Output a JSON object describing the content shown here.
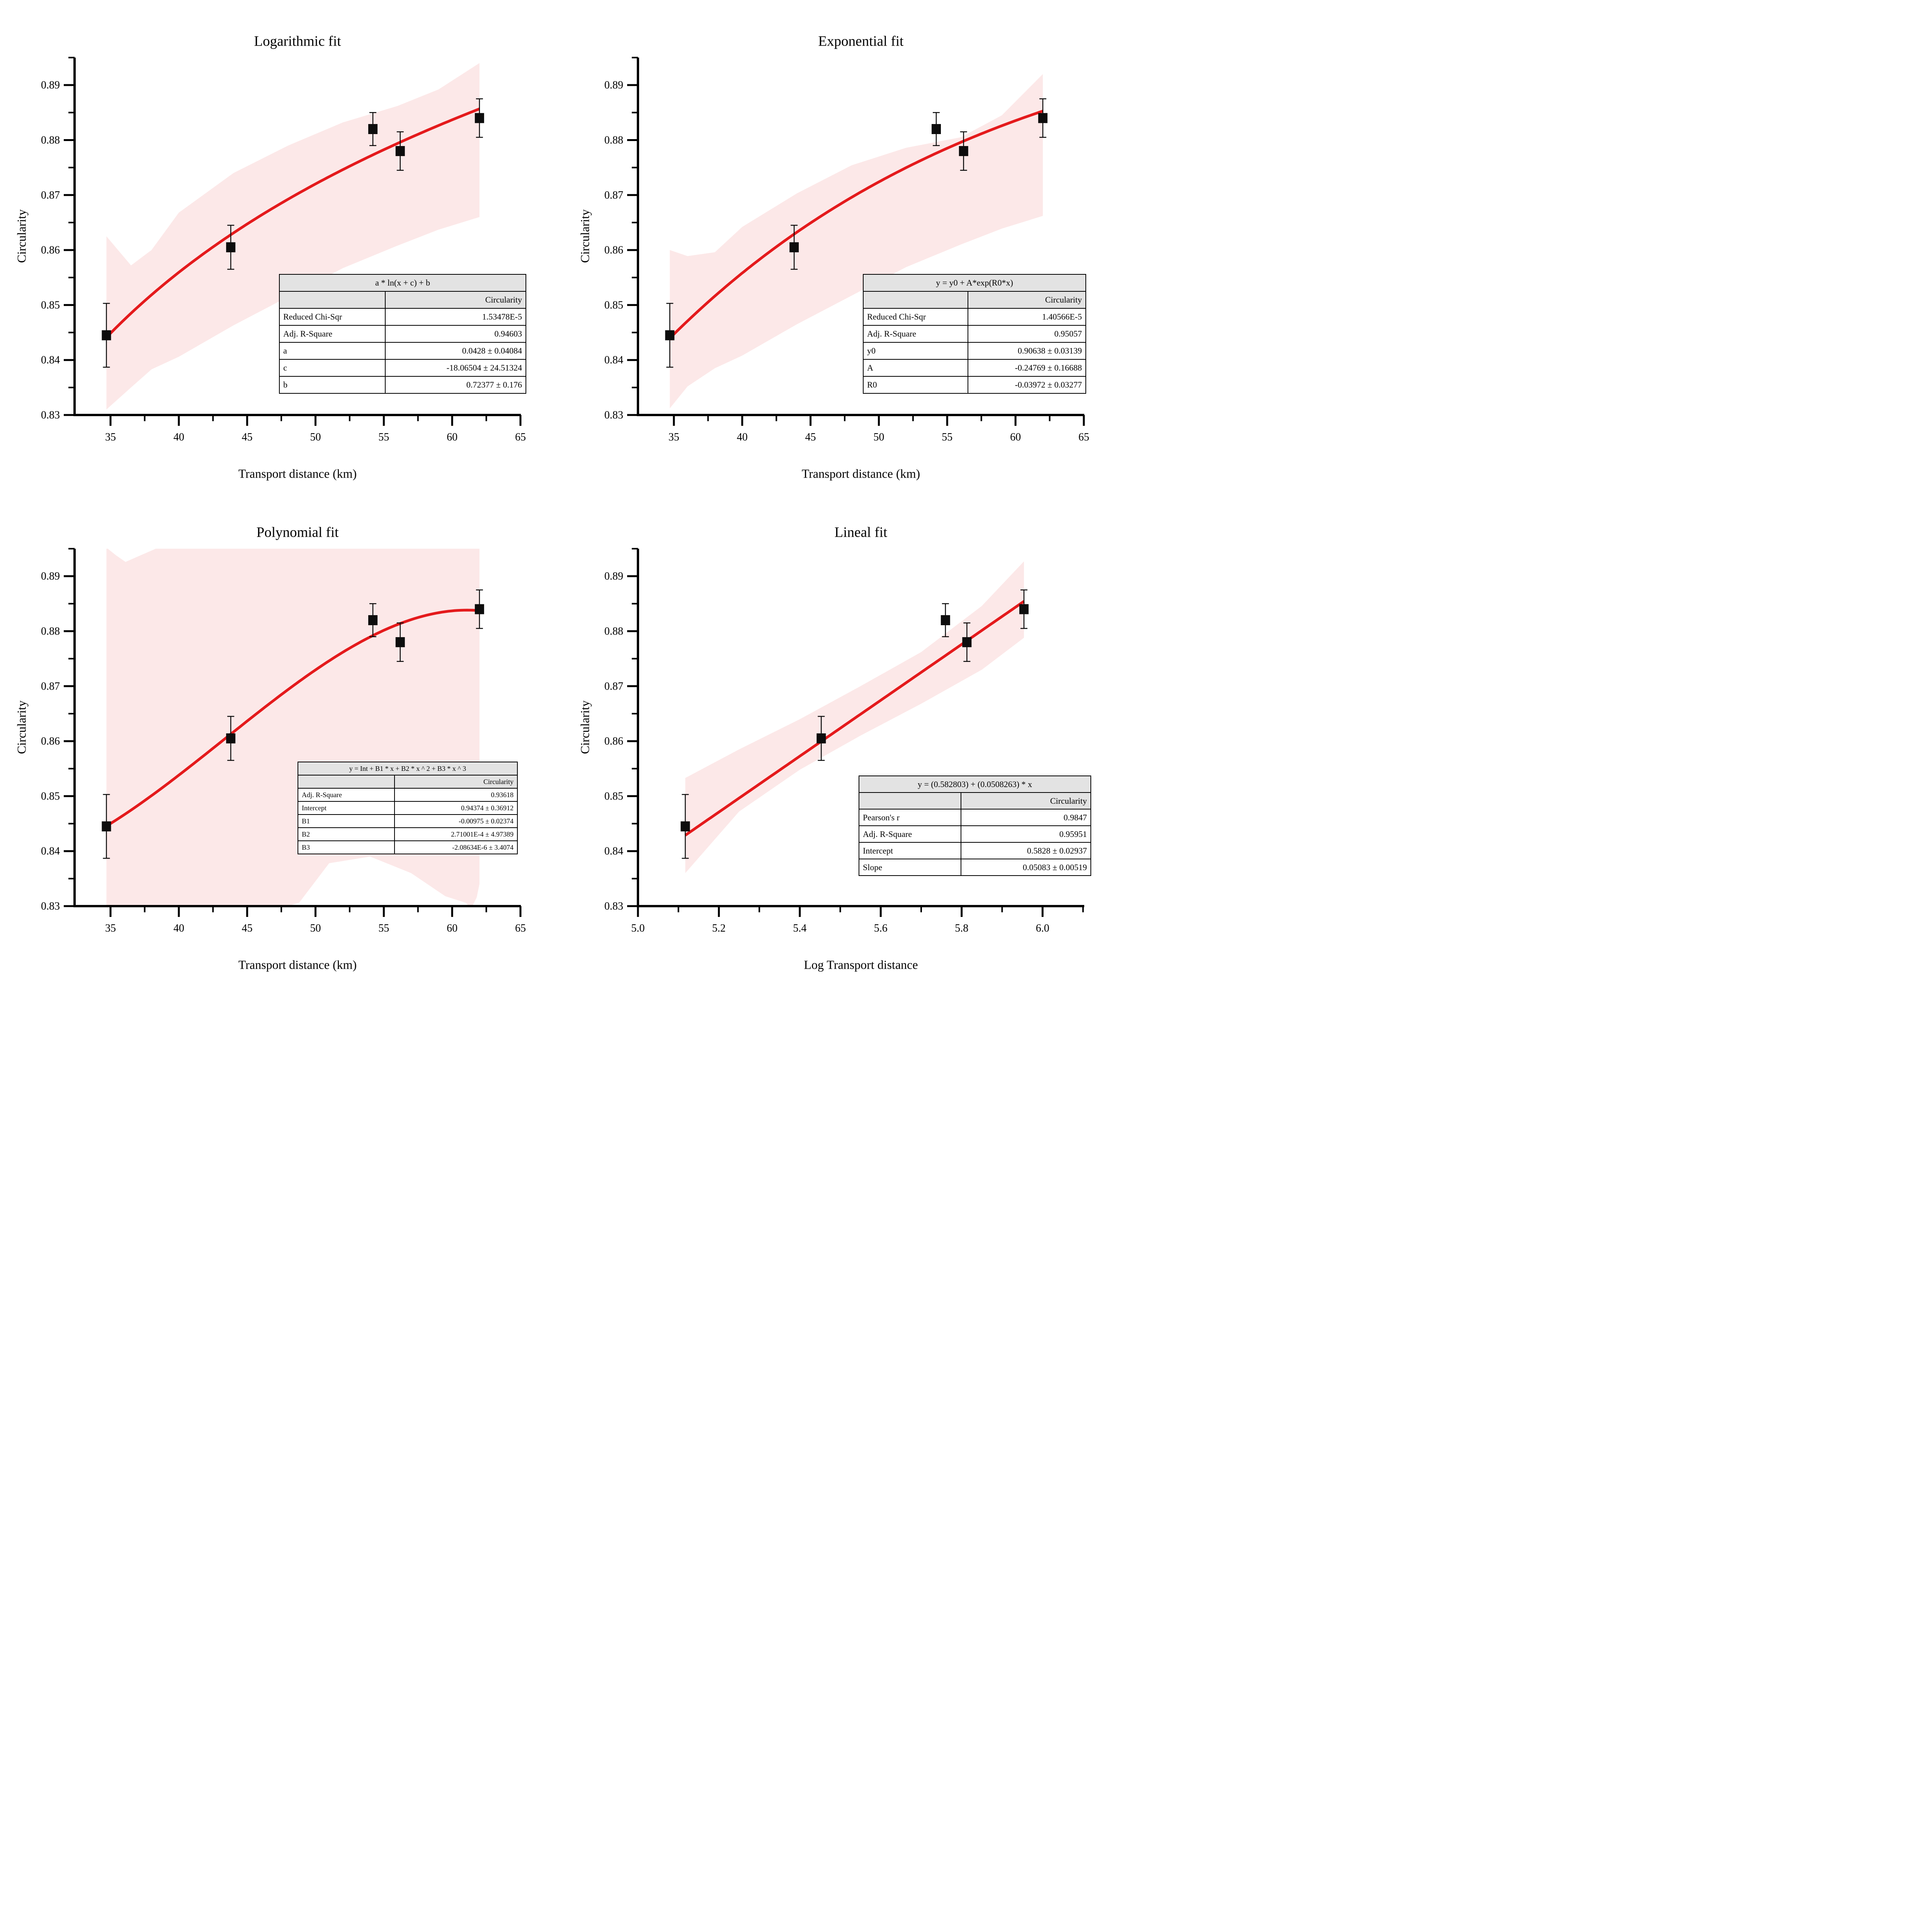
{
  "colors": {
    "fit_line": "#e41a1c",
    "band": "#fce8e8",
    "marker": "#0d0d0d",
    "axis": "#000000",
    "table_header_bg": "#e3e3e3"
  },
  "chart_data": [
    {
      "id": "logarithmic",
      "type": "scatter",
      "title": "Logarithmic fit",
      "xlabel": "Transport distance (km)",
      "ylabel": "Circularity",
      "xlim": [
        32.37,
        65.03
      ],
      "ylim": [
        0.83,
        0.895
      ],
      "x_ticks": {
        "values": [
          35,
          40,
          45,
          50,
          55,
          60,
          65
        ],
        "labels": [
          "35",
          "40",
          "45",
          "50",
          "55",
          "60",
          "65"
        ],
        "minor": [
          37.5,
          42.5,
          47.5,
          52.5,
          57.5,
          62.5
        ]
      },
      "y_ticks": {
        "values": [
          0.83,
          0.84,
          0.85,
          0.86,
          0.87,
          0.88,
          0.89
        ],
        "labels": [
          "0.83",
          "0.84",
          "0.85",
          "0.86",
          "0.87",
          "0.88",
          "0.89"
        ],
        "minor": [
          0.835,
          0.845,
          0.855,
          0.865,
          0.875,
          0.885,
          0.895
        ]
      },
      "points": {
        "x": [
          34.7,
          43.8,
          54.2,
          56.2,
          62.0
        ],
        "y": [
          0.8445,
          0.8605,
          0.882,
          0.878,
          0.884
        ],
        "err": [
          0.0058,
          0.004,
          0.003,
          0.0035,
          0.0035
        ]
      },
      "fit": {
        "kind": "log",
        "domain": [
          34.7,
          62.0
        ],
        "params": {
          "a": 0.0428,
          "c": -18.06504,
          "b": 0.72377
        }
      },
      "band": {
        "x": [
          34.7,
          36.5,
          38,
          40,
          44,
          48,
          52,
          56,
          59,
          62
        ],
        "hi": [
          0.8625,
          0.8572,
          0.86,
          0.8668,
          0.874,
          0.879,
          0.8832,
          0.8862,
          0.8892,
          0.894
        ],
        "lo": [
          0.831,
          0.835,
          0.8383,
          0.8406,
          0.8463,
          0.8515,
          0.8567,
          0.8608,
          0.8637,
          0.866
        ]
      },
      "table": {
        "formula": "a * ln(x + c) + b",
        "column": "Circularity",
        "rows": [
          [
            "Reduced Chi-Sqr",
            "1.53478E-5"
          ],
          [
            "Adj. R-Square",
            "0.94603"
          ],
          [
            "a",
            "0.0428 ± 0.04084"
          ],
          [
            "c",
            "-18.06504 ± 24.51324"
          ],
          [
            "b",
            "0.72377 ± 0.176"
          ]
        ]
      }
    },
    {
      "id": "exponential",
      "type": "scatter",
      "title": "Exponential fit",
      "xlabel": "Transport distance (km)",
      "ylabel": "Circularity",
      "xlim": [
        32.37,
        65.03
      ],
      "ylim": [
        0.83,
        0.895
      ],
      "x_ticks": {
        "values": [
          35,
          40,
          45,
          50,
          55,
          60,
          65
        ],
        "labels": [
          "35",
          "40",
          "45",
          "50",
          "55",
          "60",
          "65"
        ],
        "minor": [
          37.5,
          42.5,
          47.5,
          52.5,
          57.5,
          62.5
        ]
      },
      "y_ticks": {
        "values": [
          0.83,
          0.84,
          0.85,
          0.86,
          0.87,
          0.88,
          0.89
        ],
        "labels": [
          "0.83",
          "0.84",
          "0.85",
          "0.86",
          "0.87",
          "0.88",
          "0.89"
        ],
        "minor": [
          0.835,
          0.845,
          0.855,
          0.865,
          0.875,
          0.885,
          0.895
        ]
      },
      "points": {
        "x": [
          34.7,
          43.8,
          54.2,
          56.2,
          62.0
        ],
        "y": [
          0.8445,
          0.8605,
          0.882,
          0.878,
          0.884
        ],
        "err": [
          0.0058,
          0.004,
          0.003,
          0.0035,
          0.0035
        ]
      },
      "fit": {
        "kind": "exp",
        "domain": [
          34.7,
          62.0
        ],
        "params": {
          "y0": 0.90638,
          "A": -0.24769,
          "R0": -0.03972
        }
      },
      "band": {
        "x": [
          34.7,
          36,
          38,
          40,
          44,
          48,
          52,
          56,
          59,
          62
        ],
        "hi": [
          0.86,
          0.8589,
          0.8596,
          0.8642,
          0.8703,
          0.8754,
          0.8786,
          0.8805,
          0.8845,
          0.892
        ],
        "lo": [
          0.8312,
          0.8352,
          0.8385,
          0.8408,
          0.8465,
          0.8517,
          0.8569,
          0.861,
          0.8639,
          0.8662
        ]
      },
      "table": {
        "formula": "y = y0 + A*exp(R0*x)",
        "column": "Circularity",
        "rows": [
          [
            "Reduced Chi-Sqr",
            "1.40566E-5"
          ],
          [
            "Adj. R-Square",
            "0.95057"
          ],
          [
            "y0",
            "0.90638 ± 0.03139"
          ],
          [
            "A",
            "-0.24769 ± 0.16688"
          ],
          [
            "R0",
            "-0.03972 ± 0.03277"
          ]
        ]
      }
    },
    {
      "id": "polynomial",
      "type": "scatter",
      "title": "Polynomial fit",
      "xlabel": "Transport distance (km)",
      "ylabel": "Circularity",
      "xlim": [
        32.37,
        65.03
      ],
      "ylim": [
        0.83,
        0.895
      ],
      "x_ticks": {
        "values": [
          35,
          40,
          45,
          50,
          55,
          60,
          65
        ],
        "labels": [
          "35",
          "40",
          "45",
          "50",
          "55",
          "60",
          "65"
        ],
        "minor": [
          37.5,
          42.5,
          47.5,
          52.5,
          57.5,
          62.5
        ]
      },
      "y_ticks": {
        "values": [
          0.83,
          0.84,
          0.85,
          0.86,
          0.87,
          0.88,
          0.89
        ],
        "labels": [
          "0.83",
          "0.84",
          "0.85",
          "0.86",
          "0.87",
          "0.88",
          "0.89"
        ],
        "minor": [
          0.835,
          0.845,
          0.855,
          0.865,
          0.875,
          0.885,
          0.895
        ]
      },
      "points": {
        "x": [
          34.7,
          43.8,
          54.2,
          56.2,
          62.0
        ],
        "y": [
          0.8445,
          0.8605,
          0.882,
          0.878,
          0.884
        ],
        "err": [
          0.0058,
          0.004,
          0.003,
          0.0035,
          0.0035
        ]
      },
      "fit": {
        "kind": "poly",
        "domain": [
          34.7,
          62.0
        ],
        "params": {
          "Int": 0.94374,
          "B1": -0.00975,
          "B2": 0.000271001,
          "B3": -2.08634e-06
        }
      },
      "band": {
        "x": [
          34.7,
          35.4,
          36.1,
          37.2,
          38.5,
          44,
          47.5,
          48.8,
          51,
          54,
          57,
          59.5,
          61,
          61.4,
          61.8,
          62
        ],
        "hi": [
          0.8952,
          0.8938,
          0.8926,
          0.8938,
          0.8952,
          0.896,
          0.896,
          0.896,
          0.896,
          0.896,
          0.896,
          0.896,
          0.896,
          0.896,
          0.896,
          0.896
        ],
        "lo": [
          0.829,
          0.829,
          0.829,
          0.829,
          0.829,
          0.8292,
          0.8297,
          0.8306,
          0.8378,
          0.839,
          0.836,
          0.8318,
          0.8306,
          0.8296,
          0.8316,
          0.834
        ]
      },
      "table": {
        "formula": "y =  Int + B1 * x + B2 * x ^ 2 + B3 * x ^ 3",
        "column": "Circularity",
        "rows": [
          [
            "Adj. R-Square",
            "0.93618"
          ],
          [
            "Intercept",
            "0.94374 ± 0.36912"
          ],
          [
            "B1",
            "-0.00975 ± 0.02374"
          ],
          [
            "B2",
            "2.71001E-4 ± 4.97389"
          ],
          [
            "B3",
            "-2.08634E-6 ± 3.4074"
          ]
        ]
      }
    },
    {
      "id": "lineal",
      "type": "scatter",
      "title": "Lineal fit",
      "xlabel": "Log Transport distance",
      "ylabel": "Circularity",
      "xlim": [
        5.0,
        6.103
      ],
      "ylim": [
        0.83,
        0.895
      ],
      "x_ticks": {
        "values": [
          5.0,
          5.2,
          5.4,
          5.6,
          5.8,
          6.0
        ],
        "labels": [
          "5.0",
          "5.2",
          "5.4",
          "5.6",
          "5.8",
          "6.0"
        ],
        "minor": [
          5.1,
          5.3,
          5.5,
          5.7,
          5.9,
          6.1
        ]
      },
      "y_ticks": {
        "values": [
          0.83,
          0.84,
          0.85,
          0.86,
          0.87,
          0.88,
          0.89
        ],
        "labels": [
          "0.83",
          "0.84",
          "0.85",
          "0.86",
          "0.87",
          "0.88",
          "0.89"
        ],
        "minor": [
          0.835,
          0.845,
          0.855,
          0.865,
          0.875,
          0.885,
          0.895
        ]
      },
      "points": {
        "x": [
          5.117,
          5.453,
          5.76,
          5.813,
          5.954
        ],
        "y": [
          0.8445,
          0.8605,
          0.882,
          0.878,
          0.884
        ],
        "err": [
          0.0058,
          0.004,
          0.003,
          0.0035,
          0.0035
        ]
      },
      "fit": {
        "kind": "lin",
        "domain": [
          5.117,
          5.954
        ],
        "params": {
          "Intercept": 0.582803,
          "Slope": 0.0508263
        }
      },
      "band": {
        "x": [
          5.117,
          5.25,
          5.4,
          5.55,
          5.7,
          5.85,
          5.954
        ],
        "hi": [
          0.8533,
          0.8585,
          0.864,
          0.87,
          0.8762,
          0.8846,
          0.8927
        ],
        "lo": [
          0.836,
          0.8472,
          0.8548,
          0.861,
          0.8668,
          0.873,
          0.8788
        ]
      },
      "table": {
        "formula": "y = (0.582803) + (0.0508263) * x",
        "column": "Circularity",
        "rows": [
          [
            "Pearson's r",
            "0.9847"
          ],
          [
            "Adj. R-Square",
            "0.95951"
          ],
          [
            "Intercept",
            "0.5828 ± 0.02937"
          ],
          [
            "Slope",
            "0.05083 ± 0.00519"
          ]
        ]
      }
    }
  ]
}
